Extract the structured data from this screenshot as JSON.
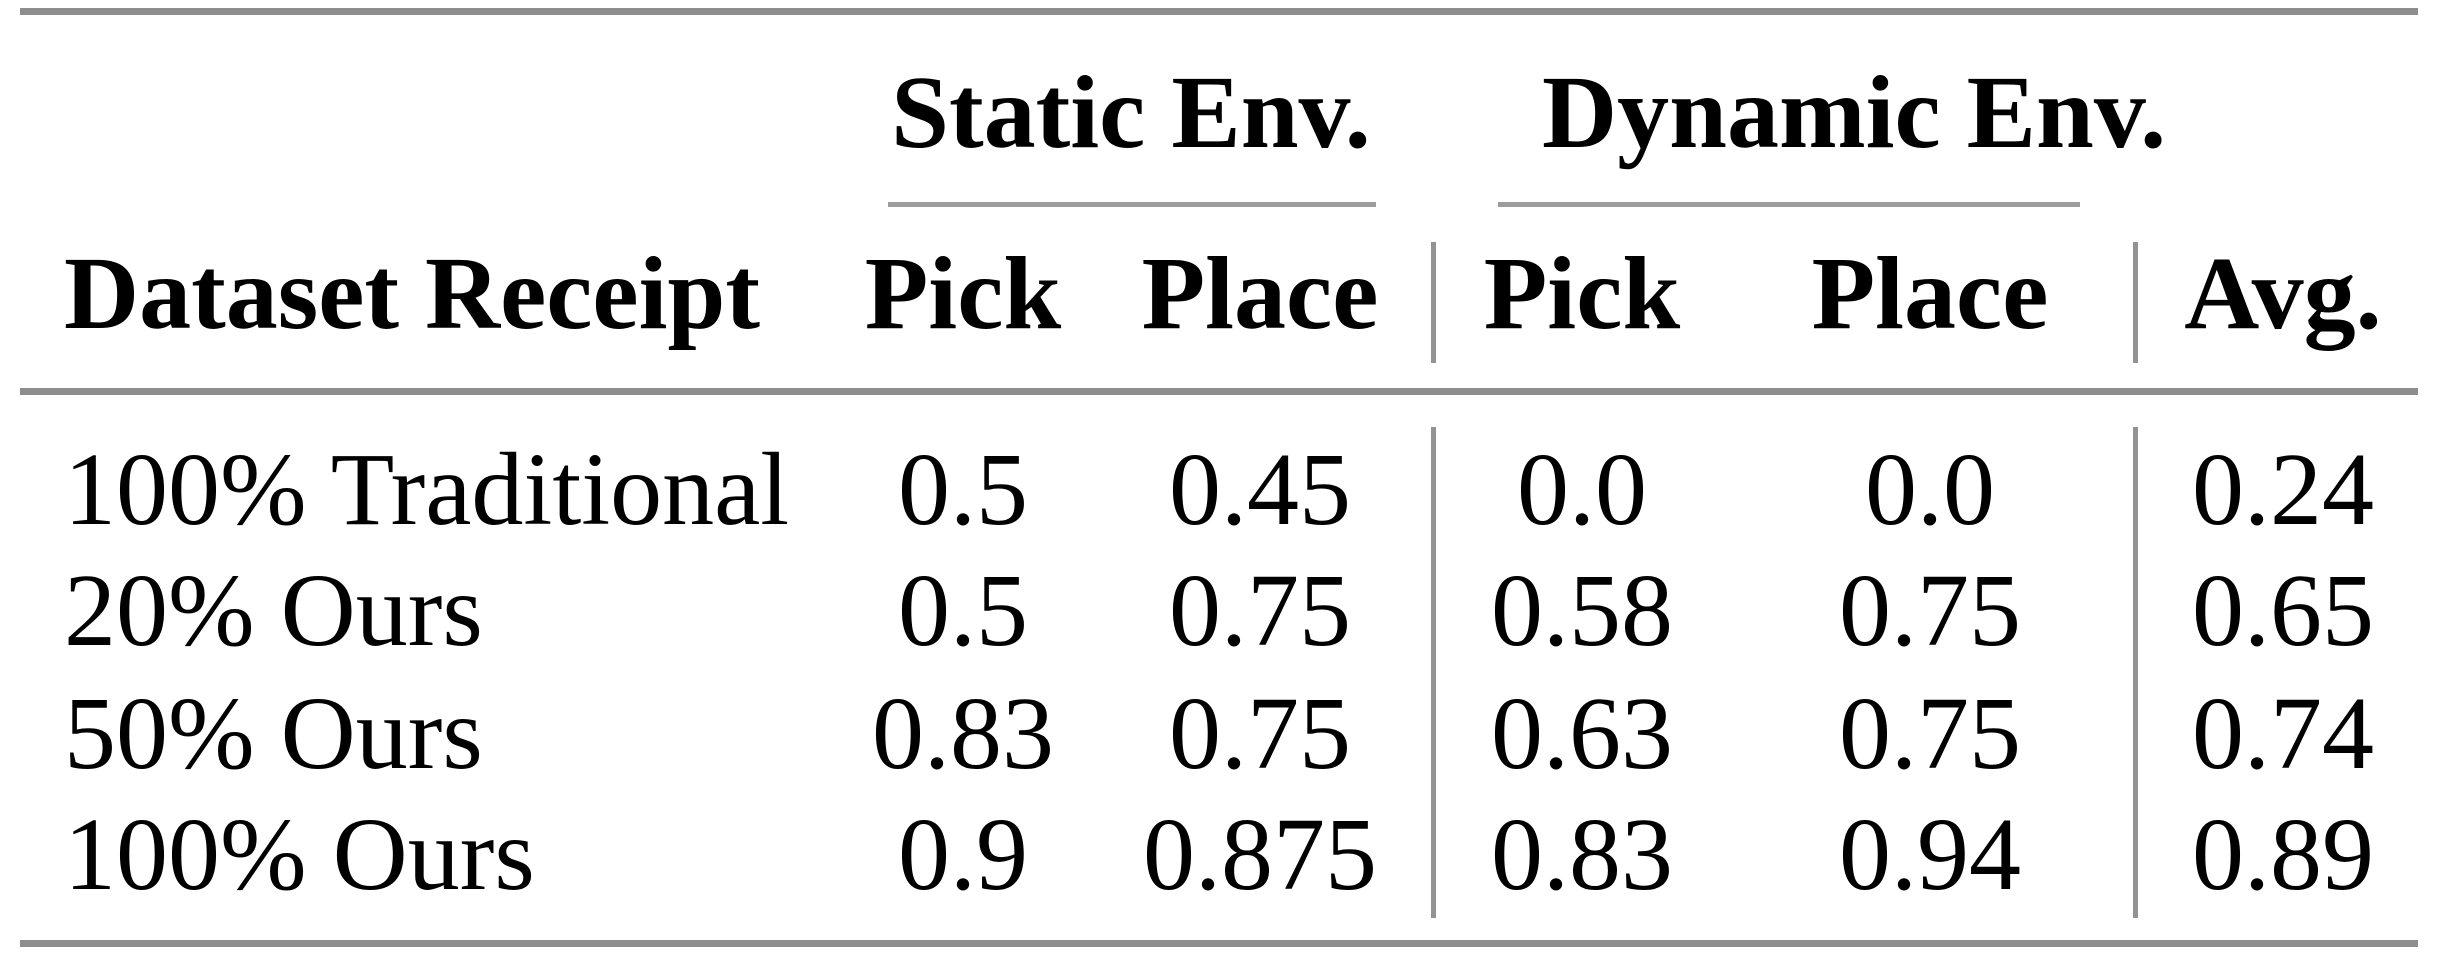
{
  "table": {
    "groups": {
      "static": "Static Env.",
      "dynamic": "Dynamic Env."
    },
    "headers": {
      "dataset": "Dataset Receipt",
      "static_pick": "Pick",
      "static_place": "Place",
      "dynamic_pick": "Pick",
      "dynamic_place": "Place",
      "avg": "Avg."
    },
    "rows": [
      {
        "label": "100% Traditional",
        "static_pick": "0.5",
        "static_place": "0.45",
        "dynamic_pick": "0.0",
        "dynamic_place": "0.0",
        "avg": "0.24"
      },
      {
        "label": "20% Ours",
        "static_pick": "0.5",
        "static_place": "0.75",
        "dynamic_pick": "0.58",
        "dynamic_place": "0.75",
        "avg": "0.65"
      },
      {
        "label": "50% Ours",
        "static_pick": "0.83",
        "static_place": "0.75",
        "dynamic_pick": "0.63",
        "dynamic_place": "0.75",
        "avg": "0.74"
      },
      {
        "label": "100% Ours",
        "static_pick": "0.9",
        "static_place": "0.875",
        "dynamic_pick": "0.83",
        "dynamic_place": "0.94",
        "avg": "0.89"
      }
    ],
    "colors": {
      "heavy_rule": "#8d8d8d",
      "light_rule": "#9c9c9c",
      "separator": "#939393",
      "text": "#000000",
      "background": "#ffffff"
    }
  }
}
